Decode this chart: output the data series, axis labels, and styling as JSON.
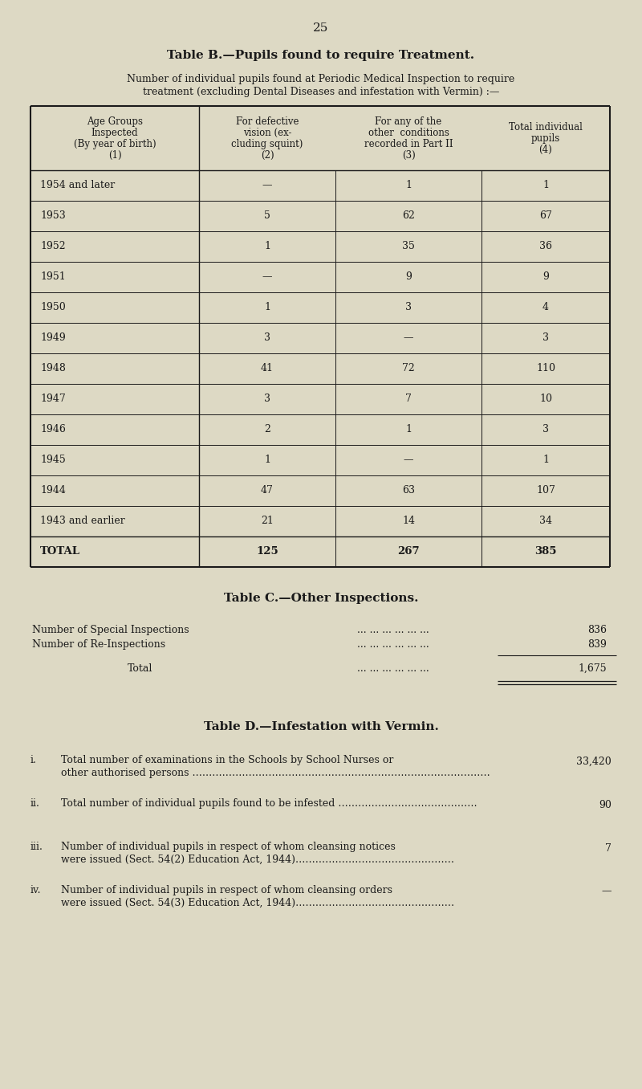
{
  "page_number": "25",
  "background_color": "#ddd9c4",
  "text_color": "#1a1a1a",
  "table_b_title": "Table B.—Pupils found to require Treatment.",
  "table_b_subtitle_line1": "Number of individual pupils found at Periodic Medical Inspection to require",
  "table_b_subtitle_line2": "treatment (excluding Dental Diseases and infestation with Vermin) :—",
  "table_b_header_lines": [
    [
      "Age Groups",
      "Inspected",
      "(By year of birth)",
      "(1)"
    ],
    [
      "For defective",
      "vision (ex-",
      "cluding squint)",
      "(2)"
    ],
    [
      "For any of the",
      "other  conditions",
      "recorded in Part II",
      "(3)"
    ],
    [
      "Total individual",
      "pupils",
      "(4)"
    ]
  ],
  "table_b_rows": [
    [
      "1954 and later",
      "—",
      "1",
      "1"
    ],
    [
      "1953",
      "5",
      "62",
      "67"
    ],
    [
      "1952",
      "1",
      "35",
      "36"
    ],
    [
      "1951",
      "—",
      "9",
      "9"
    ],
    [
      "1950",
      "1",
      "3",
      "4"
    ],
    [
      "1949",
      "3",
      "—",
      "3"
    ],
    [
      "1948",
      "41",
      "72",
      "110"
    ],
    [
      "1947",
      "3",
      "7",
      "10"
    ],
    [
      "1946",
      "2",
      "1",
      "3"
    ],
    [
      "1945",
      "1",
      "—",
      "1"
    ],
    [
      "1944",
      "47",
      "63",
      "107"
    ],
    [
      "1943 and earlier",
      "21",
      "14",
      "34"
    ],
    [
      "TOTAL",
      "125",
      "267",
      "385"
    ]
  ],
  "table_c_title": "Table C.—Other Inspections.",
  "table_c_rows": [
    [
      "Number of Special Inspections",
      "... ... ... ... ... ...",
      "836"
    ],
    [
      "Number of Re-Inspections",
      "... ... ... ... ... ...",
      "839"
    ]
  ],
  "table_c_total_label": "Total",
  "table_c_total_dots": "... ... ... ... ... ...",
  "table_c_total_value": "1,675",
  "table_d_title": "Table D.—Infestation with Vermin.",
  "table_d_rows": [
    [
      "i.",
      "Total number of examinations in the Schools by School Nurses or",
      "other authorised persons ………………………………………………………………………………",
      "33,420"
    ],
    [
      "ii.",
      "Total number of individual pupils found to be infested ……………………………………",
      "",
      "90"
    ],
    [
      "iii.",
      "Number of individual pupils in respect of whom cleansing notices",
      "were issued (Sect. 54(2) Education Act, 1944)…………………………………………",
      "7"
    ],
    [
      "iv.",
      "Number of individual pupils in respect of whom cleansing orders",
      "were issued (Sect. 54(3) Education Act, 1944)…………………………………………",
      "—"
    ]
  ]
}
